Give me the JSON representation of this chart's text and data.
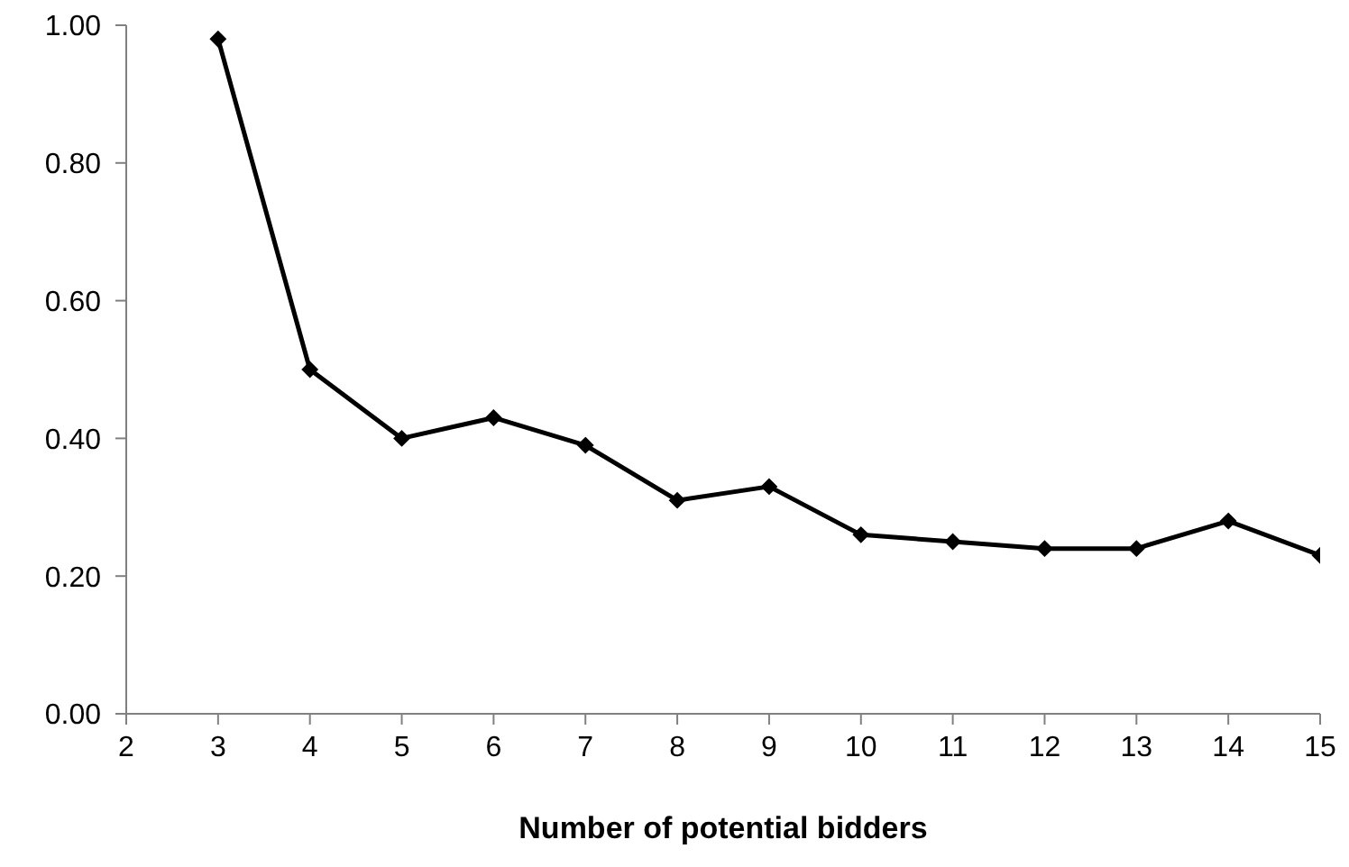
{
  "chart_data": {
    "type": "line",
    "xlabel": "Number of potential bidders",
    "x": [
      3,
      4,
      5,
      6,
      7,
      8,
      9,
      10,
      11,
      12,
      13,
      14,
      15
    ],
    "series": [
      {
        "color": "#000000",
        "values": [
          0.98,
          0.5,
          0.4,
          0.43,
          0.39,
          0.31,
          0.33,
          0.26,
          0.25,
          0.24,
          0.24,
          0.28,
          0.23
        ]
      }
    ],
    "xlim": [
      2,
      15
    ],
    "xticks": [
      2,
      3,
      4,
      5,
      6,
      7,
      8,
      9,
      10,
      11,
      12,
      13,
      14,
      15
    ],
    "ylim": [
      0,
      1
    ],
    "yticks": [
      {
        "value": 0,
        "label": "0.00"
      },
      {
        "value": 0.2,
        "label": "0.20"
      },
      {
        "value": 0.4,
        "label": "0.40"
      },
      {
        "value": 0.6,
        "label": "0.60"
      },
      {
        "value": 0.8,
        "label": "0.80"
      },
      {
        "value": 1,
        "label": "1.00"
      }
    ],
    "grid": false,
    "legend": false,
    "marker": "diamond",
    "line_style": "solid"
  }
}
